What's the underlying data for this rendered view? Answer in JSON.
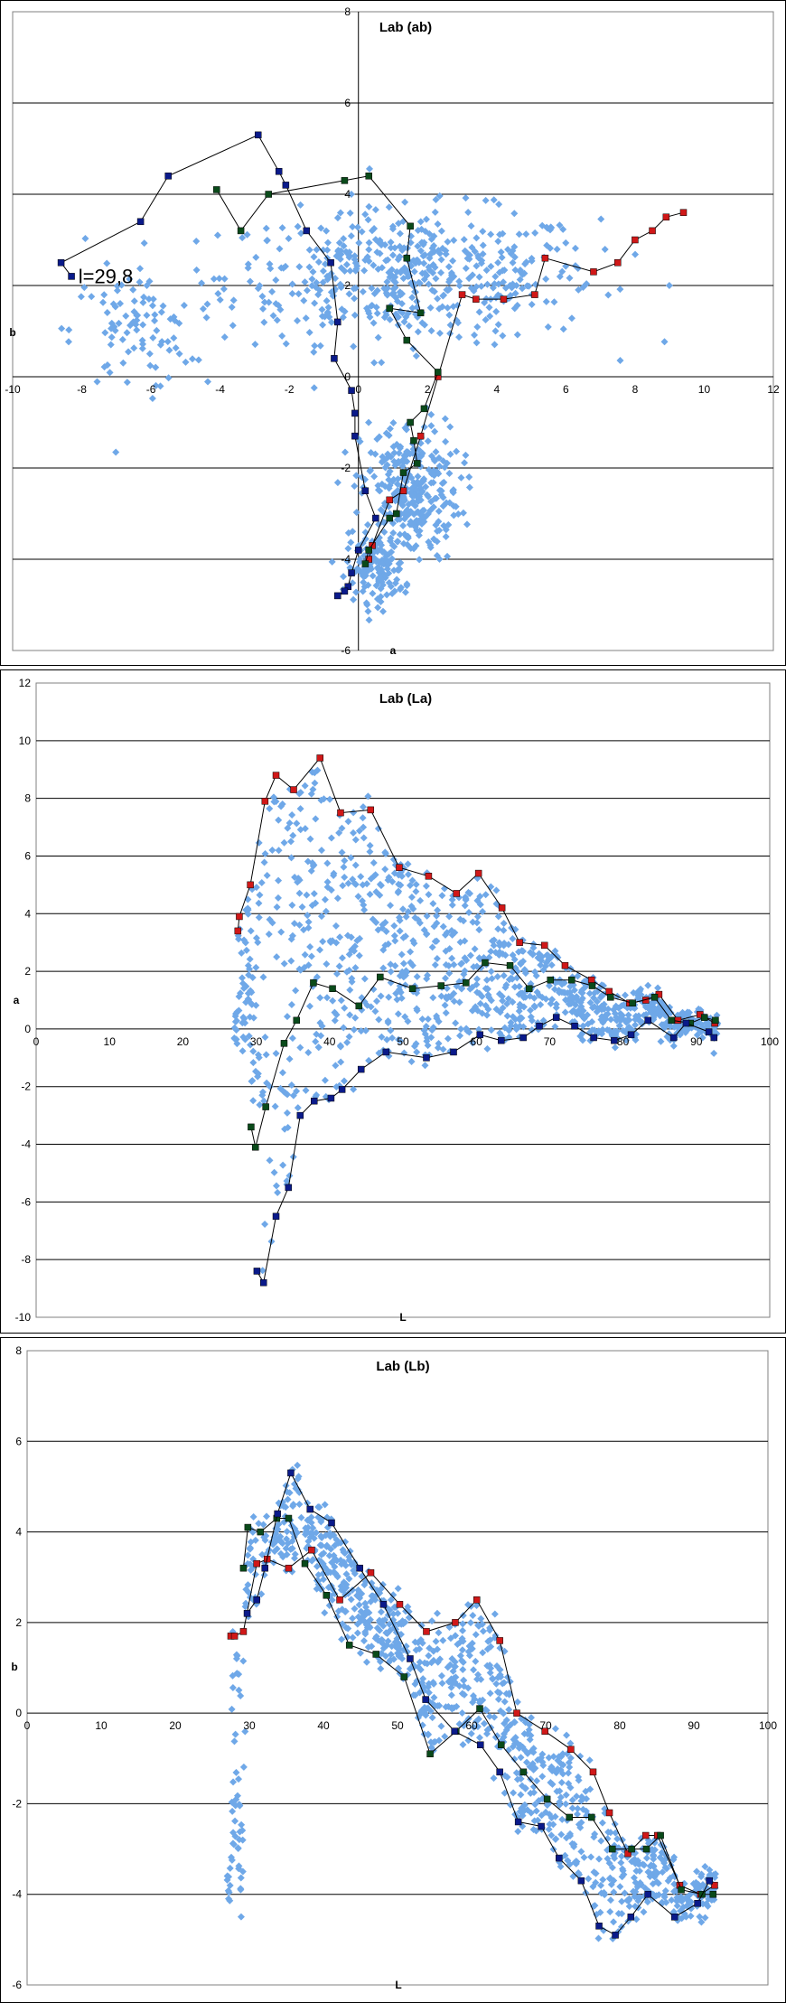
{
  "chart_data": [
    {
      "type": "scatter",
      "title": "Lab (ab)",
      "xlabel": "a",
      "ylabel": "b",
      "xlim": [
        -10,
        12
      ],
      "ylim": [
        -6,
        8
      ],
      "xticks": [
        "-10",
        "-8",
        "-6",
        "-4",
        "-2",
        "0",
        "2",
        "4",
        "6",
        "8",
        "10",
        "12"
      ],
      "yticks": [
        "-6",
        "-4",
        "-2",
        "0",
        "2",
        "4",
        "6",
        "8"
      ],
      "annotation": "l=29,8",
      "grid": "horizontal",
      "colors": {
        "cloud": "#6fa8e8",
        "red": "#d01818",
        "green": "#0a4a1a",
        "blue": "#0a1a8a",
        "line": "#000000"
      },
      "cloud_regions": [
        {
          "cx": 1.5,
          "cy": 2.2,
          "sx": 4.5,
          "sy": 1.2,
          "n": 520
        },
        {
          "cx": -6.5,
          "cy": 1.0,
          "sx": 1.5,
          "sy": 1.1,
          "n": 90
        },
        {
          "cx": 1.5,
          "cy": -2.5,
          "sx": 1.2,
          "sy": 1.3,
          "n": 300
        },
        {
          "cx": 0.5,
          "cy": -4.2,
          "sx": 0.7,
          "sy": 0.6,
          "n": 140
        }
      ],
      "series": [
        {
          "name": "",
          "color": "red",
          "points": [
            [
              9.4,
              3.6
            ],
            [
              8.9,
              3.5
            ],
            [
              8.5,
              3.2
            ],
            [
              8.0,
              3.0
            ],
            [
              7.5,
              2.5
            ],
            [
              6.8,
              2.3
            ],
            [
              5.4,
              2.6
            ],
            [
              5.1,
              1.8
            ],
            [
              4.2,
              1.7
            ],
            [
              3.4,
              1.7
            ],
            [
              3.0,
              1.8
            ],
            [
              2.3,
              0.0
            ],
            [
              1.8,
              -1.3
            ],
            [
              1.3,
              -2.5
            ],
            [
              0.9,
              -2.7
            ],
            [
              0.4,
              -3.7
            ],
            [
              0.3,
              -4.0
            ]
          ]
        },
        {
          "name": "",
          "color": "green",
          "points": [
            [
              -4.1,
              4.1
            ],
            [
              -3.4,
              3.2
            ],
            [
              -2.6,
              4.0
            ],
            [
              -0.4,
              4.3
            ],
            [
              0.3,
              4.4
            ],
            [
              1.5,
              3.3
            ],
            [
              1.4,
              2.6
            ],
            [
              1.8,
              1.4
            ],
            [
              0.9,
              1.5
            ],
            [
              1.4,
              0.8
            ],
            [
              2.3,
              0.1
            ],
            [
              1.9,
              -0.7
            ],
            [
              1.5,
              -1.0
            ],
            [
              1.6,
              -1.4
            ],
            [
              1.7,
              -1.9
            ],
            [
              1.3,
              -2.1
            ],
            [
              1.1,
              -3.0
            ],
            [
              0.9,
              -3.1
            ],
            [
              0.3,
              -3.8
            ],
            [
              0.2,
              -4.1
            ]
          ]
        },
        {
          "name": "",
          "color": "blue",
          "points": [
            [
              -8.3,
              2.2
            ],
            [
              -8.6,
              2.5
            ],
            [
              -6.3,
              3.4
            ],
            [
              -5.5,
              4.4
            ],
            [
              -2.9,
              5.3
            ],
            [
              -2.3,
              4.5
            ],
            [
              -2.1,
              4.2
            ],
            [
              -1.5,
              3.2
            ],
            [
              -0.8,
              2.5
            ],
            [
              -0.6,
              1.2
            ],
            [
              -0.7,
              0.4
            ],
            [
              -0.2,
              -0.3
            ],
            [
              -0.1,
              -0.8
            ],
            [
              -0.1,
              -1.3
            ],
            [
              0.2,
              -2.5
            ],
            [
              0.5,
              -3.1
            ],
            [
              0.0,
              -3.8
            ],
            [
              -0.2,
              -4.3
            ],
            [
              -0.3,
              -4.6
            ],
            [
              -0.4,
              -4.7
            ],
            [
              -0.6,
              -4.8
            ]
          ]
        }
      ]
    },
    {
      "type": "scatter",
      "title": "Lab (La)",
      "xlabel": "L",
      "ylabel": "a",
      "xlim": [
        0,
        100
      ],
      "ylim": [
        -10,
        12
      ],
      "xticks": [
        "0",
        "10",
        "20",
        "30",
        "40",
        "50",
        "60",
        "70",
        "80",
        "90",
        "100"
      ],
      "yticks": [
        "-10",
        "-8",
        "-6",
        "-4",
        "-2",
        "0",
        "2",
        "4",
        "6",
        "8",
        "10",
        "12"
      ],
      "grid": "horizontal",
      "colors": {
        "cloud": "#6fa8e8",
        "red": "#d01818",
        "green": "#0a4a1a",
        "blue": "#0a1a8a",
        "line": "#000000"
      },
      "series": [
        {
          "name": "",
          "color": "red",
          "points": [
            [
              27.5,
              3.4
            ],
            [
              27.7,
              3.9
            ],
            [
              29.2,
              5.0
            ],
            [
              31.2,
              7.9
            ],
            [
              32.7,
              8.8
            ],
            [
              35.1,
              8.3
            ],
            [
              38.7,
              9.4
            ],
            [
              41.5,
              7.5
            ],
            [
              45.6,
              7.6
            ],
            [
              49.5,
              5.6
            ],
            [
              53.5,
              5.3
            ],
            [
              57.3,
              4.7
            ],
            [
              60.3,
              5.4
            ],
            [
              63.5,
              4.2
            ],
            [
              65.9,
              3.0
            ],
            [
              69.3,
              2.9
            ],
            [
              72.1,
              2.2
            ],
            [
              75.7,
              1.7
            ],
            [
              78.1,
              1.3
            ],
            [
              80.9,
              0.9
            ],
            [
              83.1,
              1.0
            ],
            [
              84.9,
              1.2
            ],
            [
              87.5,
              0.3
            ],
            [
              90.5,
              0.5
            ],
            [
              92.5,
              0.2
            ]
          ]
        },
        {
          "name": "",
          "color": "green",
          "points": [
            [
              29.3,
              -3.4
            ],
            [
              29.9,
              -4.1
            ],
            [
              31.3,
              -2.7
            ],
            [
              33.8,
              -0.5
            ],
            [
              35.5,
              0.3
            ],
            [
              37.8,
              1.6
            ],
            [
              40.4,
              1.4
            ],
            [
              44.0,
              0.8
            ],
            [
              46.9,
              1.8
            ],
            [
              51.3,
              1.4
            ],
            [
              55.2,
              1.5
            ],
            [
              58.6,
              1.6
            ],
            [
              61.2,
              2.3
            ],
            [
              64.6,
              2.2
            ],
            [
              67.2,
              1.4
            ],
            [
              70.1,
              1.7
            ],
            [
              73.0,
              1.7
            ],
            [
              75.8,
              1.5
            ],
            [
              78.3,
              1.1
            ],
            [
              81.3,
              0.9
            ],
            [
              84.3,
              1.1
            ],
            [
              86.6,
              0.3
            ],
            [
              89.2,
              0.2
            ],
            [
              91.1,
              0.4
            ],
            [
              92.6,
              0.3
            ]
          ]
        },
        {
          "name": "",
          "color": "blue",
          "points": [
            [
              30.1,
              -8.4
            ],
            [
              31.0,
              -8.8
            ],
            [
              32.7,
              -6.5
            ],
            [
              34.4,
              -5.5
            ],
            [
              36.0,
              -3.0
            ],
            [
              37.9,
              -2.5
            ],
            [
              40.2,
              -2.4
            ],
            [
              41.7,
              -2.1
            ],
            [
              44.3,
              -1.4
            ],
            [
              47.7,
              -0.8
            ],
            [
              53.2,
              -1.0
            ],
            [
              56.9,
              -0.8
            ],
            [
              60.5,
              -0.2
            ],
            [
              63.4,
              -0.4
            ],
            [
              66.4,
              -0.3
            ],
            [
              68.6,
              0.1
            ],
            [
              70.9,
              0.4
            ],
            [
              73.4,
              0.1
            ],
            [
              76.0,
              -0.3
            ],
            [
              78.8,
              -0.4
            ],
            [
              81.1,
              -0.2
            ],
            [
              83.4,
              0.3
            ],
            [
              86.9,
              -0.3
            ],
            [
              88.6,
              0.2
            ],
            [
              91.7,
              -0.1
            ],
            [
              92.4,
              -0.3
            ]
          ]
        }
      ]
    },
    {
      "type": "scatter",
      "title": "Lab (Lb)",
      "xlabel": "L",
      "ylabel": "b",
      "xlim": [
        0,
        100
      ],
      "ylim": [
        -6,
        8
      ],
      "xticks": [
        "0",
        "10",
        "20",
        "30",
        "40",
        "50",
        "60",
        "70",
        "80",
        "90",
        "100"
      ],
      "yticks": [
        "-6",
        "-4",
        "-2",
        "0",
        "2",
        "4",
        "6",
        "8"
      ],
      "grid": "horizontal",
      "colors": {
        "cloud": "#6fa8e8",
        "red": "#d01818",
        "green": "#0a4a1a",
        "blue": "#0a1a8a",
        "line": "#000000"
      },
      "series": [
        {
          "name": "",
          "color": "red",
          "points": [
            [
              27.5,
              1.7
            ],
            [
              28.0,
              1.7
            ],
            [
              29.2,
              1.8
            ],
            [
              31.0,
              3.3
            ],
            [
              32.4,
              3.4
            ],
            [
              35.3,
              3.2
            ],
            [
              38.4,
              3.6
            ],
            [
              42.2,
              2.5
            ],
            [
              46.4,
              3.1
            ],
            [
              50.3,
              2.4
            ],
            [
              53.9,
              1.8
            ],
            [
              57.8,
              2.0
            ],
            [
              60.7,
              2.5
            ],
            [
              63.8,
              1.6
            ],
            [
              66.1,
              0.0
            ],
            [
              69.9,
              -0.4
            ],
            [
              73.4,
              -0.8
            ],
            [
              76.4,
              -1.3
            ],
            [
              78.6,
              -2.2
            ],
            [
              81.1,
              -3.1
            ],
            [
              83.5,
              -2.7
            ],
            [
              85.1,
              -2.7
            ],
            [
              88.1,
              -3.8
            ],
            [
              90.9,
              -4.0
            ],
            [
              92.8,
              -3.8
            ]
          ]
        },
        {
          "name": "",
          "color": "green",
          "points": [
            [
              29.2,
              3.2
            ],
            [
              29.8,
              4.1
            ],
            [
              31.5,
              4.0
            ],
            [
              33.7,
              4.3
            ],
            [
              35.3,
              4.3
            ],
            [
              37.5,
              3.3
            ],
            [
              40.4,
              2.6
            ],
            [
              43.5,
              1.5
            ],
            [
              47.1,
              1.3
            ],
            [
              50.9,
              0.8
            ],
            [
              54.4,
              -0.9
            ],
            [
              57.9,
              -0.4
            ],
            [
              61.1,
              0.1
            ],
            [
              64.0,
              -0.7
            ],
            [
              67.0,
              -1.3
            ],
            [
              70.2,
              -1.9
            ],
            [
              73.2,
              -2.3
            ],
            [
              76.2,
              -2.3
            ],
            [
              79.0,
              -3.0
            ],
            [
              81.6,
              -3.0
            ],
            [
              83.6,
              -3.0
            ],
            [
              85.5,
              -2.7
            ],
            [
              88.3,
              -3.9
            ],
            [
              91.1,
              -4.0
            ],
            [
              92.6,
              -4.0
            ]
          ]
        },
        {
          "name": "",
          "color": "blue",
          "points": [
            [
              29.7,
              2.2
            ],
            [
              31.0,
              2.5
            ],
            [
              32.1,
              3.2
            ],
            [
              33.8,
              4.4
            ],
            [
              35.6,
              5.3
            ],
            [
              38.2,
              4.5
            ],
            [
              41.1,
              4.2
            ],
            [
              44.9,
              3.2
            ],
            [
              48.1,
              2.4
            ],
            [
              51.7,
              1.2
            ],
            [
              53.8,
              0.3
            ],
            [
              57.7,
              -0.4
            ],
            [
              61.2,
              -0.7
            ],
            [
              63.8,
              -1.3
            ],
            [
              66.3,
              -2.4
            ],
            [
              69.4,
              -2.5
            ],
            [
              71.8,
              -3.2
            ],
            [
              74.8,
              -3.7
            ],
            [
              77.2,
              -4.7
            ],
            [
              79.4,
              -4.9
            ],
            [
              81.5,
              -4.5
            ],
            [
              83.8,
              -4.0
            ],
            [
              87.4,
              -4.5
            ],
            [
              90.5,
              -4.2
            ],
            [
              92.1,
              -3.7
            ]
          ]
        }
      ]
    }
  ]
}
